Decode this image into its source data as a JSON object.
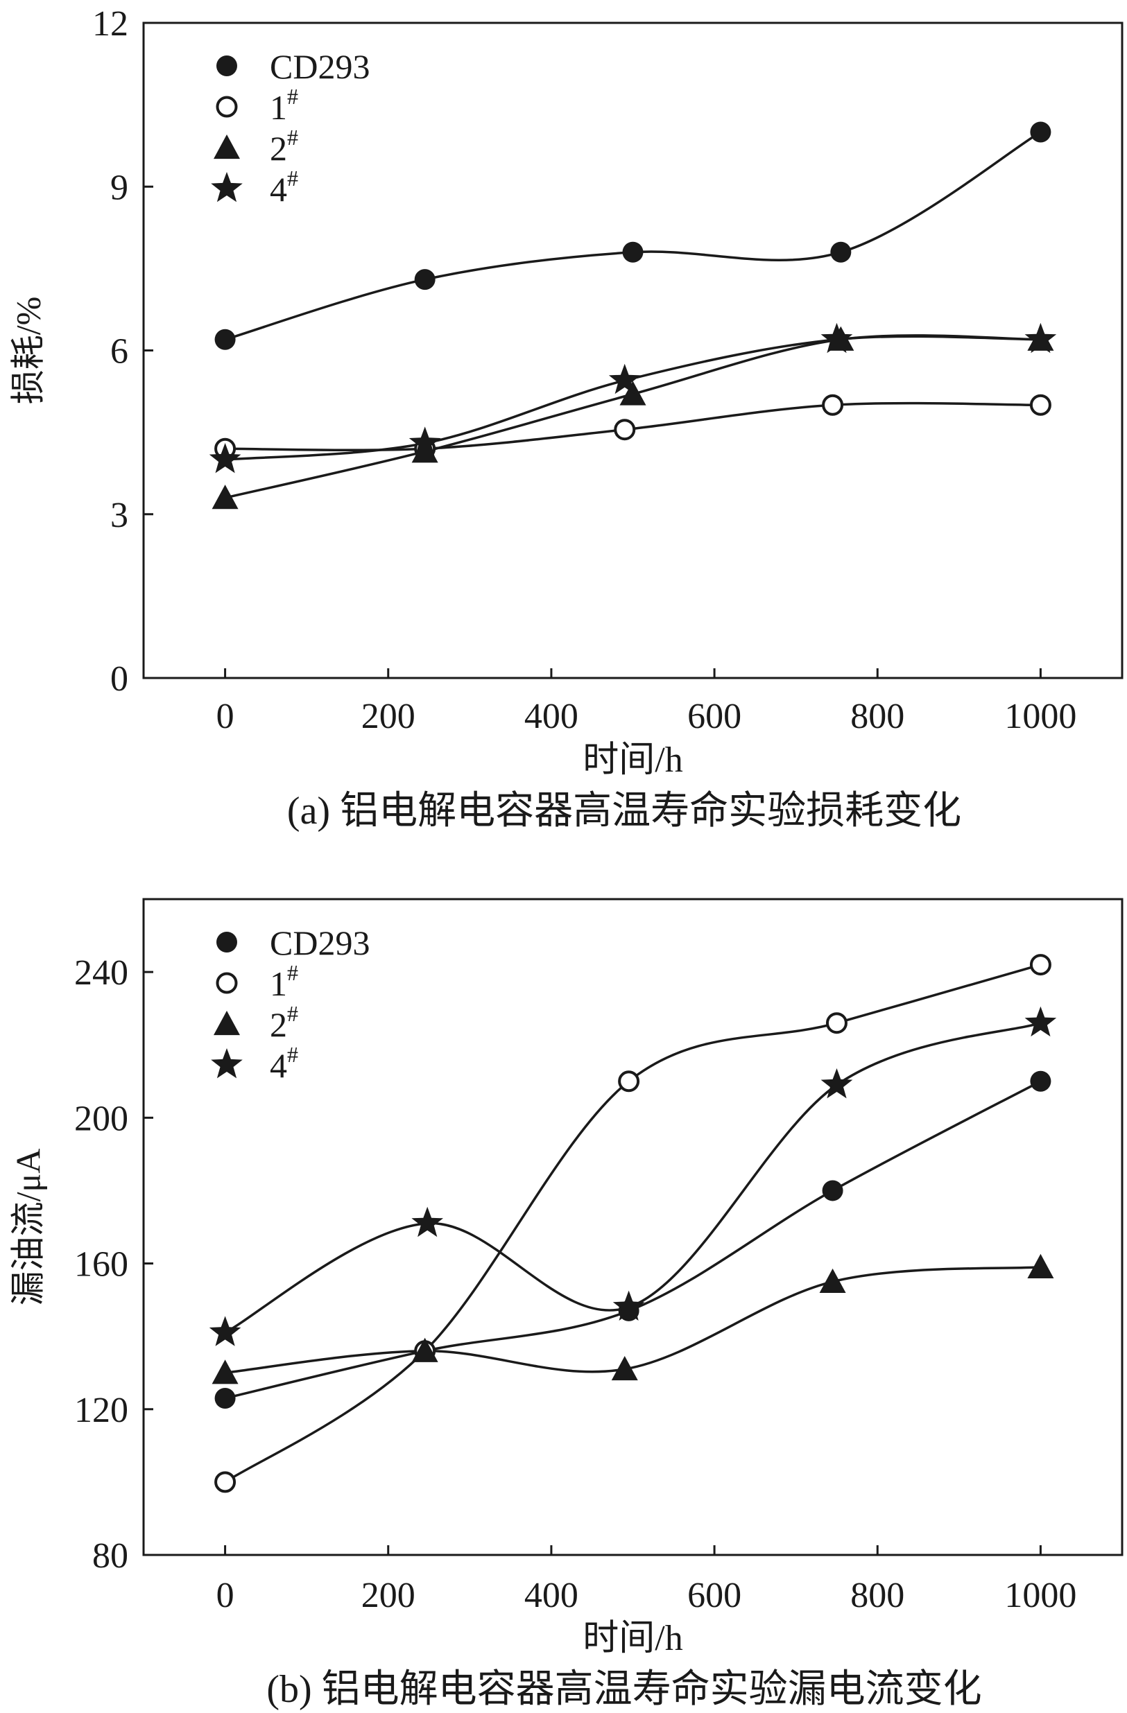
{
  "chart_data": [
    {
      "type": "line",
      "caption": "(a) 铝电解电容器高温寿命实验损耗变化",
      "xlabel": "时间/h",
      "ylabel": "损耗/%",
      "xlim": [
        -100,
        1100
      ],
      "ylim": [
        0,
        12
      ],
      "xticks": [
        0,
        200,
        400,
        600,
        800,
        1000
      ],
      "yticks": [
        0,
        3,
        6,
        9,
        12
      ],
      "grid": false,
      "legend_position": "top-left",
      "series": [
        {
          "name": "CD293",
          "marker": "filled-circle",
          "x": [
            0,
            245,
            500,
            755,
            1000
          ],
          "y": [
            6.2,
            7.3,
            7.8,
            7.8,
            10.0
          ]
        },
        {
          "name": "1#",
          "marker": "open-circle",
          "x": [
            0,
            245,
            490,
            745,
            1000
          ],
          "y": [
            4.2,
            4.2,
            4.55,
            5.0,
            5.0
          ]
        },
        {
          "name": "2#",
          "marker": "filled-triangle",
          "x": [
            0,
            245,
            500,
            755,
            1000
          ],
          "y": [
            3.3,
            4.15,
            5.2,
            6.2,
            6.2
          ]
        },
        {
          "name": "4#",
          "marker": "star",
          "x": [
            0,
            245,
            490,
            750,
            1000
          ],
          "y": [
            4.0,
            4.3,
            5.45,
            6.2,
            6.2
          ]
        }
      ]
    },
    {
      "type": "line",
      "caption": "(b) 铝电解电容器高温寿命实验漏电流变化",
      "xlabel": "时间/h",
      "ylabel": "漏油流/μA",
      "xlim": [
        -100,
        1100
      ],
      "ylim": [
        80,
        260
      ],
      "xticks": [
        0,
        200,
        400,
        600,
        800,
        1000
      ],
      "yticks": [
        80,
        120,
        160,
        200,
        240
      ],
      "grid": false,
      "legend_position": "top-left",
      "series": [
        {
          "name": "CD293",
          "marker": "filled-circle",
          "x": [
            0,
            245,
            495,
            745,
            1000
          ],
          "y": [
            123,
            136,
            147,
            180,
            210
          ]
        },
        {
          "name": "1#",
          "marker": "open-circle",
          "x": [
            0,
            245,
            495,
            750,
            1000
          ],
          "y": [
            100,
            136,
            210,
            226,
            242
          ]
        },
        {
          "name": "2#",
          "marker": "filled-triangle",
          "x": [
            0,
            245,
            490,
            745,
            1000
          ],
          "y": [
            130,
            136,
            131,
            155,
            159
          ]
        },
        {
          "name": "4#",
          "marker": "star",
          "x": [
            0,
            248,
            495,
            750,
            1000
          ],
          "y": [
            141,
            171,
            148,
            209,
            226
          ]
        }
      ]
    }
  ]
}
